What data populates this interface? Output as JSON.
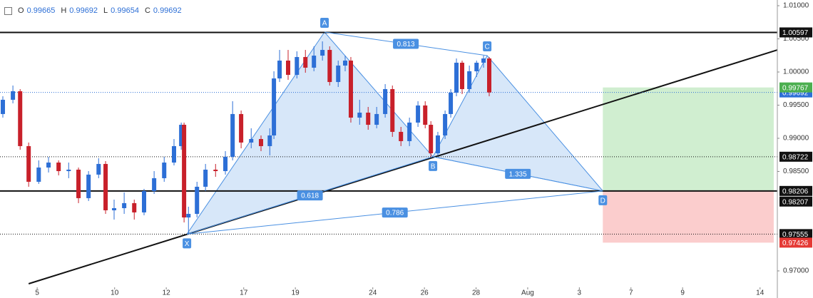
{
  "chart_data": {
    "type": "candlestick",
    "ohlc_header": {
      "labels": [
        "O",
        "H",
        "L",
        "C"
      ],
      "values": [
        0.99665,
        0.99692,
        0.99654,
        0.99692
      ]
    },
    "x": [
      -1.33,
      -0.94,
      -0.66,
      -0.33,
      0.06,
      0.44,
      0.83,
      1.22,
      1.6,
      1.99,
      2.38,
      2.65,
      2.98,
      3.37,
      3.76,
      4.14,
      4.53,
      4.92,
      5.3,
      5.58,
      5.69,
      5.86,
      6.19,
      6.52,
      6.91,
      7.29,
      7.57,
      7.9,
      8.29,
      8.67,
      9.01,
      9.17,
      9.39,
      9.72,
      10.06,
      10.39,
      10.72,
      11.05,
      11.33,
      11.66,
      11.93,
      12.15,
      12.49,
      12.82,
      13.15,
      13.48,
      13.76,
      14.09,
      14.42,
      14.75,
      15.03,
      15.25,
      15.52,
      15.8,
      16.02,
      16.24,
      16.46,
      16.74,
      17.02,
      17.29,
      17.51
    ],
    "open": [
      0.99366,
      0.99581,
      0.9971,
      0.98882,
      0.98344,
      0.98559,
      0.98634,
      0.98505,
      0.98527,
      0.98097,
      0.98452,
      0.98613,
      0.97914,
      0.97946,
      0.98022,
      0.97882,
      0.98204,
      0.98398,
      0.98634,
      0.98882,
      0.99204,
      0.97806,
      0.9786,
      0.98269,
      0.98527,
      0.98505,
      0.9872,
      0.99366,
      0.98936,
      0.98989,
      0.98882,
      0.99043,
      0.99903,
      1.00172,
      0.99957,
      1.00226,
      1.00065,
      1.00247,
      1.00333,
      0.99849,
      1.00097,
      1.00172,
      0.99312,
      0.99387,
      0.99204,
      0.99366,
      0.99742,
      0.99097,
      0.98957,
      0.99237,
      0.99495,
      0.99204,
      0.98774,
      0.99043,
      0.99366,
      0.99688,
      1.0014,
      0.99742,
      1.00011,
      1.0014,
      1.00204
    ],
    "high": [
      0.99634,
      0.99796,
      0.99742,
      0.98936,
      0.98667,
      0.9872,
      0.98667,
      0.98634,
      0.98559,
      0.98505,
      0.98699,
      0.98656,
      0.98075,
      0.98183,
      0.98075,
      0.98237,
      0.98505,
      0.9872,
      0.98989,
      0.99237,
      0.99237,
      0.97968,
      0.98344,
      0.98613,
      0.98613,
      0.98806,
      0.99559,
      0.99419,
      0.99151,
      0.99043,
      0.99151,
      1.00011,
      1.00333,
      1.00333,
      1.00312,
      1.00333,
      1.00387,
      1.00462,
      1.00387,
      1.00172,
      1.00247,
      1.00226,
      0.99581,
      0.99473,
      0.99473,
      0.99817,
      0.99796,
      0.99172,
      0.99312,
      0.99559,
      0.99559,
      0.99258,
      0.99097,
      0.99419,
      0.99742,
      1.00204,
      1.00172,
      1.00097,
      1.00172,
      1.00247,
      1.00226
    ],
    "low": [
      0.99312,
      0.99527,
      0.98828,
      0.98269,
      0.98312,
      0.98484,
      0.98441,
      0.98398,
      0.98022,
      0.98054,
      0.98398,
      0.9786,
      0.97774,
      0.9786,
      0.97774,
      0.97839,
      0.98161,
      0.98344,
      0.98591,
      0.98828,
      0.97731,
      0.97559,
      0.97806,
      0.98204,
      0.98419,
      0.98452,
      0.98667,
      0.98849,
      0.98849,
      0.98806,
      0.98742,
      0.98989,
      0.99849,
      0.99882,
      0.99903,
      0.99989,
      1.00011,
      1.00172,
      0.99796,
      0.99774,
      1.00011,
      0.99237,
      0.99204,
      0.99129,
      0.99151,
      0.99312,
      0.99022,
      0.98882,
      0.98882,
      0.99172,
      0.99151,
      0.9872,
      0.98742,
      0.98989,
      0.99312,
      0.99634,
      0.99667,
      0.99688,
      0.99925,
      1.00065,
      0.99634
    ],
    "close": [
      0.99581,
      0.9971,
      0.98882,
      0.98344,
      0.98559,
      0.98634,
      0.98505,
      0.98527,
      0.98097,
      0.98452,
      0.98613,
      0.97914,
      0.97946,
      0.98022,
      0.97882,
      0.98204,
      0.98398,
      0.98634,
      0.98882,
      0.99204,
      0.97806,
      0.9786,
      0.98269,
      0.98527,
      0.98505,
      0.9872,
      0.99366,
      0.98936,
      0.98989,
      0.98882,
      0.99043,
      0.99903,
      1.00172,
      0.99957,
      1.00226,
      1.00065,
      1.00247,
      1.00333,
      0.99849,
      1.00097,
      1.00172,
      0.99312,
      0.99387,
      0.99204,
      0.99366,
      0.99742,
      0.99097,
      0.98957,
      0.99237,
      0.99495,
      0.99204,
      0.98774,
      0.99043,
      0.99366,
      0.99688,
      1.0014,
      0.99742,
      1.00011,
      1.0014,
      1.00204,
      0.99692
    ],
    "up_color": "#2d6fd6",
    "down_color": "#c8202a",
    "xlim": [
      -1.44,
      28.67
    ],
    "xticks": [
      {
        "value": 0,
        "label": "5"
      },
      {
        "value": 3,
        "label": "10"
      },
      {
        "value": 5,
        "label": "12"
      },
      {
        "value": 8,
        "label": "17"
      },
      {
        "value": 10,
        "label": "19"
      },
      {
        "value": 13,
        "label": "24"
      },
      {
        "value": 15,
        "label": "26"
      },
      {
        "value": 17,
        "label": "28"
      },
      {
        "value": 19,
        "label": "Aug"
      },
      {
        "value": 21,
        "label": "3"
      },
      {
        "value": 23,
        "label": "7"
      },
      {
        "value": 25,
        "label": "9"
      },
      {
        "value": 28,
        "label": "14"
      }
    ],
    "ylim": [
      0.96591,
      1.01086
    ],
    "yticks": [
      {
        "value": 1.01,
        "label": "1.01000"
      },
      {
        "value": 1.005,
        "label": "1.00500"
      },
      {
        "value": 1.0,
        "label": "1.00000"
      },
      {
        "value": 0.995,
        "label": "0.99500"
      },
      {
        "value": 0.99,
        "label": "0.99000"
      },
      {
        "value": 0.985,
        "label": "0.98500"
      },
      {
        "value": 0.97,
        "label": "0.97000"
      }
    ],
    "pattern": {
      "color": "#4a90e2",
      "points": [
        {
          "label": "X",
          "x": 5.8,
          "y": 0.97555
        },
        {
          "label": "A",
          "x": 11.13,
          "y": 1.00602
        },
        {
          "label": "B",
          "x": 15.33,
          "y": 0.98722
        },
        {
          "label": "C",
          "x": 17.43,
          "y": 1.00247
        },
        {
          "label": "D",
          "x": 21.91,
          "y": 0.98206
        }
      ],
      "legs": [
        {
          "from": "A",
          "to": "C",
          "ratio": 0.813
        },
        {
          "from": "X",
          "to": "B",
          "ratio": 0.618
        },
        {
          "from": "B",
          "to": "D",
          "ratio": 1.335
        },
        {
          "from": "X",
          "to": "D",
          "ratio": 0.786
        }
      ]
    },
    "trendline": {
      "x": [
        -0.33,
        28.67
      ],
      "y": [
        0.96806,
        1.00333
      ]
    },
    "levels": [
      {
        "value": 1.00597,
        "style": "solid"
      },
      {
        "value": 0.98206,
        "style": "solid"
      },
      {
        "value": 0.98722,
        "style": "dotted"
      },
      {
        "value": 0.97555,
        "style": "dotted"
      },
      {
        "value": 0.99692,
        "style": "price"
      }
    ],
    "position": {
      "x": [
        21.91,
        28.53
      ],
      "target": 0.99767,
      "entry": 0.98207,
      "stop": 0.97426
    }
  }
}
